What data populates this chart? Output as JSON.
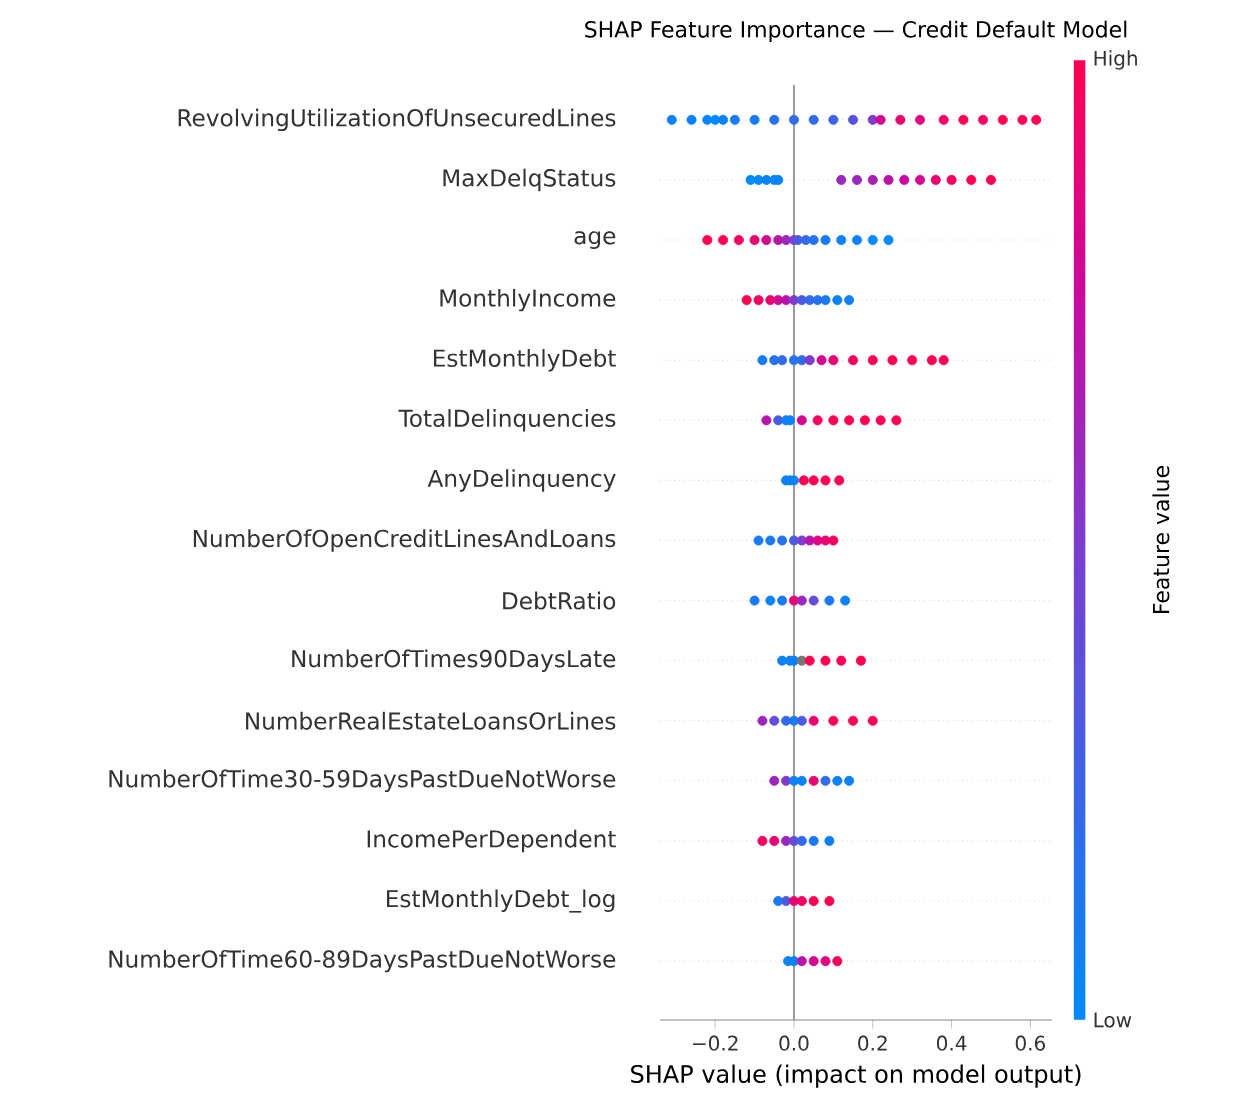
{
  "chart_data": {
    "type": "scatter",
    "orientation": "horizontal",
    "title": "SHAP Feature Importance — Credit Default Model",
    "xlabel": "SHAP value (impact on model output)",
    "clabel": "Feature value",
    "categories": [
      "RevolvingUtilizationOfUnsecuredLines",
      "MaxDelqStatus",
      "age",
      "MonthlyIncome",
      "EstMonthlyDebt",
      "TotalDelinquencies",
      "AnyDelinquency",
      "NumberOfOpenCreditLinesAndLoans",
      "DebtRatio",
      "NumberOfTimes90DaysLate",
      "NumberRealEstateLoansOrLines",
      "NumberOfTime30-59DaysPastDueNotWorse",
      "IncomePerDependent",
      "EstMonthlyDebt_log",
      "NumberOfTime60-89DaysPastDueNotWorse"
    ],
    "xlim": [
      -0.34,
      0.655
    ],
    "xticks": [
      {
        "value": -0.2,
        "label": "−0.2"
      },
      {
        "value": 0,
        "label": "0.0"
      },
      {
        "value": 0.2,
        "label": "0.2"
      },
      {
        "value": 0.4,
        "label": "0.4"
      },
      {
        "value": 0.6,
        "label": "0.6"
      }
    ],
    "clim": [
      0,
      1
    ],
    "cticks": [
      {
        "value": 0,
        "label": "Low"
      },
      {
        "value": 1,
        "label": "High"
      }
    ],
    "grid": "y",
    "marker": "circle",
    "ref_lines": [
      {
        "axis": "x",
        "value": 0,
        "color": "#999999"
      }
    ],
    "series": [
      {
        "x": [
          "RevolvingUtilizationOfUnsecuredLines",
          "RevolvingUtilizationOfUnsecuredLines",
          "RevolvingUtilizationOfUnsecuredLines",
          "RevolvingUtilizationOfUnsecuredLines",
          "RevolvingUtilizationOfUnsecuredLines",
          "RevolvingUtilizationOfUnsecuredLines",
          "RevolvingUtilizationOfUnsecuredLines",
          "RevolvingUtilizationOfUnsecuredLines",
          "RevolvingUtilizationOfUnsecuredLines",
          "RevolvingUtilizationOfUnsecuredLines",
          "RevolvingUtilizationOfUnsecuredLines",
          "RevolvingUtilizationOfUnsecuredLines",
          "RevolvingUtilizationOfUnsecuredLines",
          "RevolvingUtilizationOfUnsecuredLines",
          "RevolvingUtilizationOfUnsecuredLines",
          "RevolvingUtilizationOfUnsecuredLines",
          "RevolvingUtilizationOfUnsecuredLines",
          "RevolvingUtilizationOfUnsecuredLines",
          "RevolvingUtilizationOfUnsecuredLines",
          "RevolvingUtilizationOfUnsecuredLines",
          "RevolvingUtilizationOfUnsecuredLines",
          "RevolvingUtilizationOfUnsecuredLines"
        ],
        "values": [
          -0.31,
          -0.26,
          -0.22,
          -0.2,
          -0.18,
          -0.15,
          -0.1,
          -0.05,
          0.0,
          0.05,
          0.1,
          0.15,
          0.2,
          0.22,
          0.27,
          0.32,
          0.38,
          0.43,
          0.48,
          0.53,
          0.58,
          0.615
        ],
        "cvalues": [
          0.05,
          0.05,
          0.02,
          0.0,
          0.05,
          0.1,
          0.1,
          0.15,
          0.2,
          0.2,
          0.25,
          0.35,
          0.5,
          0.8,
          0.9,
          0.85,
          0.95,
          1,
          0.95,
          1,
          1,
          1
        ],
        "colors": [
          "#0d82f6",
          "#0d82f6",
          "#0587f9",
          "#008afb",
          "#0d82f6",
          "#197af2",
          "#197af2",
          "#2673ed",
          "#326be9",
          "#326be9",
          "#3f63e4",
          "#5853db",
          "#7d3ccd",
          "#d30890",
          "#e90471",
          "#de0681",
          "#f40262",
          "#ff0052",
          "#f40262",
          "#ff0052",
          "#ff0052",
          "#ff0052"
        ]
      },
      {
        "x": [
          "MaxDelqStatus",
          "MaxDelqStatus",
          "MaxDelqStatus",
          "MaxDelqStatus",
          "MaxDelqStatus",
          "MaxDelqStatus",
          "MaxDelqStatus",
          "MaxDelqStatus",
          "MaxDelqStatus",
          "MaxDelqStatus",
          "MaxDelqStatus",
          "MaxDelqStatus",
          "MaxDelqStatus",
          "MaxDelqStatus",
          "MaxDelqStatus"
        ],
        "values": [
          -0.11,
          -0.09,
          -0.07,
          -0.05,
          -0.04,
          0.12,
          0.16,
          0.2,
          0.24,
          0.28,
          0.32,
          0.36,
          0.4,
          0.45,
          0.5
        ],
        "cvalues": [
          0,
          0,
          0.05,
          0,
          0.05,
          0.6,
          0.6,
          0.65,
          0.7,
          0.75,
          0.8,
          0.9,
          0.95,
          1,
          1
        ],
        "colors": [
          "#008afb",
          "#008afb",
          "#0d82f6",
          "#008afb",
          "#0d82f6",
          "#9b28bb",
          "#9b28bb",
          "#aa1eb2",
          "#b914a9",
          "#c80aa0",
          "#d30890",
          "#e90471",
          "#f40262",
          "#ff0052",
          "#ff0052"
        ]
      },
      {
        "x": [
          "age",
          "age",
          "age",
          "age",
          "age",
          "age",
          "age",
          "age",
          "age",
          "age",
          "age",
          "age",
          "age",
          "age",
          "age",
          "age"
        ],
        "values": [
          -0.22,
          -0.18,
          -0.14,
          -0.1,
          -0.07,
          -0.04,
          -0.02,
          0.0,
          0.01,
          0.03,
          0.05,
          0.08,
          0.12,
          0.16,
          0.2,
          0.24
        ],
        "cvalues": [
          1,
          1,
          0.95,
          0.9,
          0.8,
          0.7,
          0.6,
          0.5,
          0.3,
          0.2,
          0.15,
          0.1,
          0.05,
          0.05,
          0.0,
          0.0
        ],
        "colors": [
          "#ff0052",
          "#ff0052",
          "#f40262",
          "#e90471",
          "#d30890",
          "#b914a9",
          "#9b28bb",
          "#7d3ccd",
          "#4b5bdf",
          "#326be9",
          "#2673ed",
          "#197af2",
          "#0d82f6",
          "#0d82f6",
          "#008afb",
          "#008afb"
        ]
      },
      {
        "x": [
          "MonthlyIncome",
          "MonthlyIncome",
          "MonthlyIncome",
          "MonthlyIncome",
          "MonthlyIncome",
          "MonthlyIncome",
          "MonthlyIncome",
          "MonthlyIncome",
          "MonthlyIncome",
          "MonthlyIncome",
          "MonthlyIncome",
          "MonthlyIncome"
        ],
        "values": [
          -0.12,
          -0.09,
          -0.06,
          -0.04,
          -0.02,
          0.0,
          0.02,
          0.04,
          0.06,
          0.08,
          0.11,
          0.14
        ],
        "cvalues": [
          1,
          0.95,
          0.9,
          0.8,
          0.7,
          0.5,
          0.3,
          0.2,
          0.15,
          0.1,
          0.05,
          0.05
        ],
        "colors": [
          "#ff0052",
          "#f40262",
          "#e90471",
          "#d30890",
          "#b914a9",
          "#7d3ccd",
          "#4b5bdf",
          "#326be9",
          "#2673ed",
          "#197af2",
          "#0d82f6",
          "#0d82f6"
        ]
      },
      {
        "x": [
          "EstMonthlyDebt",
          "EstMonthlyDebt",
          "EstMonthlyDebt",
          "EstMonthlyDebt",
          "EstMonthlyDebt",
          "EstMonthlyDebt",
          "EstMonthlyDebt",
          "EstMonthlyDebt",
          "EstMonthlyDebt",
          "EstMonthlyDebt",
          "EstMonthlyDebt",
          "EstMonthlyDebt",
          "EstMonthlyDebt",
          "EstMonthlyDebt"
        ],
        "values": [
          -0.08,
          -0.05,
          -0.03,
          0.0,
          0.02,
          0.04,
          0.07,
          0.1,
          0.15,
          0.2,
          0.25,
          0.3,
          0.35,
          0.38
        ],
        "cvalues": [
          0.1,
          0.15,
          0.2,
          0.15,
          0.2,
          0.5,
          0.8,
          0.9,
          0.95,
          1,
          1,
          1,
          1,
          1
        ],
        "colors": [
          "#197af2",
          "#2673ed",
          "#326be9",
          "#2673ed",
          "#326be9",
          "#7d3ccd",
          "#d30890",
          "#e90471",
          "#f40262",
          "#ff0052",
          "#ff0052",
          "#ff0052",
          "#ff0052",
          "#ff0052"
        ]
      },
      {
        "x": [
          "TotalDelinquencies",
          "TotalDelinquencies",
          "TotalDelinquencies",
          "TotalDelinquencies",
          "TotalDelinquencies",
          "TotalDelinquencies",
          "TotalDelinquencies",
          "TotalDelinquencies",
          "TotalDelinquencies",
          "TotalDelinquencies",
          "TotalDelinquencies"
        ],
        "values": [
          -0.07,
          -0.04,
          -0.02,
          -0.01,
          0.02,
          0.06,
          0.1,
          0.14,
          0.18,
          0.22,
          0.26
        ],
        "cvalues": [
          0.7,
          0.3,
          0.05,
          0.05,
          0.8,
          0.95,
          1,
          1,
          1,
          1,
          1
        ],
        "colors": [
          "#b914a9",
          "#4b5bdf",
          "#0d82f6",
          "#0d82f6",
          "#d30890",
          "#f40262",
          "#ff0052",
          "#ff0052",
          "#ff0052",
          "#ff0052",
          "#ff0052"
        ]
      },
      {
        "x": [
          "AnyDelinquency",
          "AnyDelinquency",
          "AnyDelinquency",
          "AnyDelinquency",
          "AnyDelinquency",
          "AnyDelinquency",
          "AnyDelinquency"
        ],
        "values": [
          -0.02,
          -0.01,
          0.0,
          0.025,
          0.05,
          0.08,
          0.115
        ],
        "cvalues": [
          0.05,
          0.05,
          0.05,
          1,
          1,
          1,
          1
        ],
        "colors": [
          "#0d82f6",
          "#0d82f6",
          "#0d82f6",
          "#ff0052",
          "#ff0052",
          "#ff0052",
          "#ff0052"
        ]
      },
      {
        "x": [
          "NumberOfOpenCreditLinesAndLoans",
          "NumberOfOpenCreditLinesAndLoans",
          "NumberOfOpenCreditLinesAndLoans",
          "NumberOfOpenCreditLinesAndLoans",
          "NumberOfOpenCreditLinesAndLoans",
          "NumberOfOpenCreditLinesAndLoans",
          "NumberOfOpenCreditLinesAndLoans",
          "NumberOfOpenCreditLinesAndLoans",
          "NumberOfOpenCreditLinesAndLoans"
        ],
        "values": [
          -0.09,
          -0.06,
          -0.03,
          0.0,
          0.02,
          0.04,
          0.06,
          0.08,
          0.1
        ],
        "cvalues": [
          0.1,
          0.1,
          0.15,
          0.3,
          0.5,
          0.7,
          0.85,
          0.9,
          0.95
        ],
        "colors": [
          "#197af2",
          "#197af2",
          "#2673ed",
          "#4b5bdf",
          "#7d3ccd",
          "#b914a9",
          "#de0681",
          "#e90471",
          "#f40262"
        ]
      },
      {
        "x": [
          "DebtRatio",
          "DebtRatio",
          "DebtRatio",
          "DebtRatio",
          "DebtRatio",
          "DebtRatio",
          "DebtRatio",
          "DebtRatio"
        ],
        "values": [
          -0.1,
          -0.06,
          -0.03,
          0.0,
          0.02,
          0.05,
          0.09,
          0.13
        ],
        "cvalues": [
          0.1,
          0.05,
          0.1,
          0.9,
          0.6,
          0.4,
          0.1,
          0.05
        ],
        "colors": [
          "#197af2",
          "#0d82f6",
          "#197af2",
          "#e90471",
          "#9b28bb",
          "#644cd6",
          "#197af2",
          "#0d82f6"
        ]
      },
      {
        "x": [
          "NumberOfTimes90DaysLate",
          "NumberOfTimes90DaysLate",
          "NumberOfTimes90DaysLate",
          "NumberOfTimes90DaysLate",
          "NumberOfTimes90DaysLate",
          "NumberOfTimes90DaysLate",
          "NumberOfTimes90DaysLate",
          "NumberOfTimes90DaysLate"
        ],
        "values": [
          -0.03,
          -0.01,
          0.0,
          0.02,
          0.04,
          0.08,
          0.12,
          0.17
        ],
        "cvalues": [
          0.05,
          0.05,
          0.05,
          null,
          1,
          1,
          1,
          1
        ],
        "colors": [
          "#0d82f6",
          "#0d82f6",
          "#0d82f6",
          "#777777",
          "#ff0052",
          "#ff0052",
          "#ff0052",
          "#ff0052"
        ]
      },
      {
        "x": [
          "NumberRealEstateLoansOrLines",
          "NumberRealEstateLoansOrLines",
          "NumberRealEstateLoansOrLines",
          "NumberRealEstateLoansOrLines",
          "NumberRealEstateLoansOrLines",
          "NumberRealEstateLoansOrLines",
          "NumberRealEstateLoansOrLines",
          "NumberRealEstateLoansOrLines",
          "NumberRealEstateLoansOrLines"
        ],
        "values": [
          -0.08,
          -0.05,
          -0.02,
          0.0,
          0.02,
          0.05,
          0.1,
          0.15,
          0.2
        ],
        "cvalues": [
          0.6,
          0.4,
          0.2,
          0.1,
          0.3,
          0.9,
          1,
          1,
          1
        ],
        "colors": [
          "#9b28bb",
          "#644cd6",
          "#326be9",
          "#197af2",
          "#4b5bdf",
          "#e90471",
          "#ff0052",
          "#ff0052",
          "#ff0052"
        ]
      },
      {
        "x": [
          "NumberOfTime30-59DaysPastDueNotWorse",
          "NumberOfTime30-59DaysPastDueNotWorse",
          "NumberOfTime30-59DaysPastDueNotWorse",
          "NumberOfTime30-59DaysPastDueNotWorse",
          "NumberOfTime30-59DaysPastDueNotWorse",
          "NumberOfTime30-59DaysPastDueNotWorse",
          "NumberOfTime30-59DaysPastDueNotWorse",
          "NumberOfTime30-59DaysPastDueNotWorse"
        ],
        "values": [
          -0.05,
          -0.02,
          0.0,
          0.02,
          0.05,
          0.08,
          0.11,
          0.14
        ],
        "cvalues": [
          0.6,
          0.5,
          0.05,
          0.05,
          0.9,
          0.2,
          0.05,
          0.05
        ],
        "colors": [
          "#9b28bb",
          "#7d3ccd",
          "#0d82f6",
          "#0d82f6",
          "#e90471",
          "#326be9",
          "#0d82f6",
          "#0d82f6"
        ]
      },
      {
        "x": [
          "IncomePerDependent",
          "IncomePerDependent",
          "IncomePerDependent",
          "IncomePerDependent",
          "IncomePerDependent",
          "IncomePerDependent",
          "IncomePerDependent"
        ],
        "values": [
          -0.08,
          -0.05,
          -0.02,
          0.0,
          0.02,
          0.05,
          0.09
        ],
        "cvalues": [
          0.95,
          0.9,
          0.6,
          0.4,
          0.2,
          0.1,
          0.05
        ],
        "colors": [
          "#f40262",
          "#e90471",
          "#9b28bb",
          "#644cd6",
          "#326be9",
          "#197af2",
          "#0d82f6"
        ]
      },
      {
        "x": [
          "EstMonthlyDebt_log",
          "EstMonthlyDebt_log",
          "EstMonthlyDebt_log",
          "EstMonthlyDebt_log",
          "EstMonthlyDebt_log",
          "EstMonthlyDebt_log"
        ],
        "values": [
          -0.04,
          -0.02,
          0.0,
          0.02,
          0.05,
          0.09
        ],
        "cvalues": [
          0.1,
          0.3,
          0.9,
          0.95,
          1,
          1
        ],
        "colors": [
          "#197af2",
          "#4b5bdf",
          "#e90471",
          "#f40262",
          "#ff0052",
          "#ff0052"
        ]
      },
      {
        "x": [
          "NumberOfTime60-89DaysPastDueNotWorse",
          "NumberOfTime60-89DaysPastDueNotWorse",
          "NumberOfTime60-89DaysPastDueNotWorse",
          "NumberOfTime60-89DaysPastDueNotWorse",
          "NumberOfTime60-89DaysPastDueNotWorse",
          "NumberOfTime60-89DaysPastDueNotWorse"
        ],
        "values": [
          -0.015,
          0.0,
          0.02,
          0.05,
          0.08,
          0.11
        ],
        "cvalues": [
          0.05,
          0.05,
          0.7,
          0.8,
          0.85,
          0.95
        ],
        "colors": [
          "#0d82f6",
          "#0d82f6",
          "#b914a9",
          "#d30890",
          "#de0681",
          "#f40262"
        ]
      }
    ]
  }
}
